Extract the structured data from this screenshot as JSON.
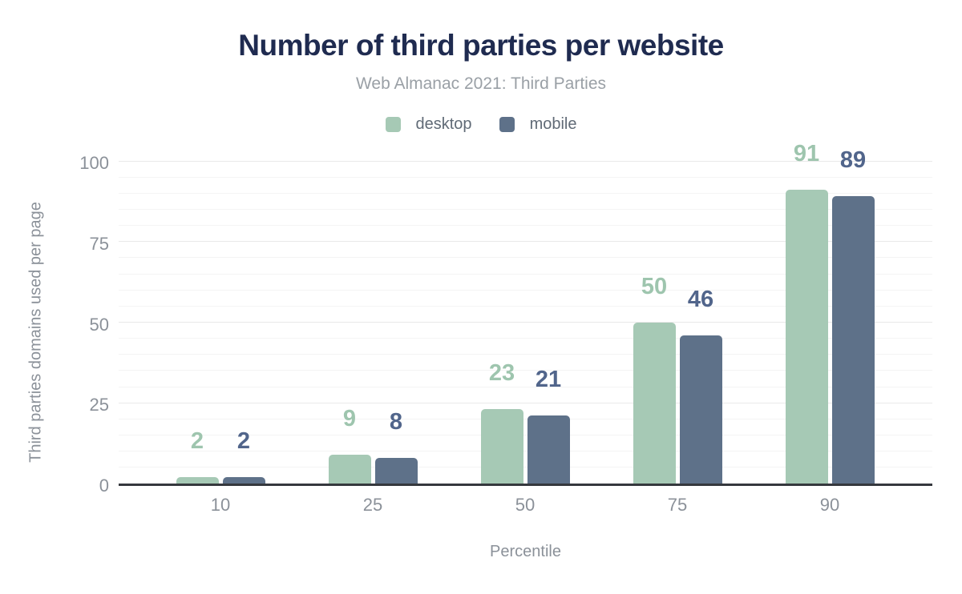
{
  "chart": {
    "title": "Number of third parties per website",
    "subtitle": "Web Almanac 2021: Third Parties",
    "x_axis_title": "Percentile",
    "y_axis_title": "Third parties domains used per page"
  },
  "legend": {
    "items": [
      {
        "label": "desktop",
        "color": "#a6c9b5"
      },
      {
        "label": "mobile",
        "color": "#5e7189"
      }
    ]
  },
  "colors": {
    "title": "#1f2b50",
    "subtitle": "#9aa0a6",
    "axis_text": "#8b9199",
    "axis_line": "#35383d",
    "desktop_bar": "#a6c9b5",
    "mobile_bar": "#5e7189",
    "desktop_value_label": "#9ec5ae",
    "mobile_value_label": "#51658b",
    "major_gridline": "#e9e9e9",
    "minor_gridline": "#f4f4f4"
  },
  "chart_data": {
    "type": "bar",
    "title": "Number of third parties per website",
    "subtitle": "Web Almanac 2021: Third Parties",
    "xlabel": "Percentile",
    "ylabel": "Third parties domains used per page",
    "categories": [
      "10",
      "25",
      "50",
      "75",
      "90"
    ],
    "series": [
      {
        "name": "desktop",
        "color": "#a6c9b5",
        "label_color": "#9ec5ae",
        "values": [
          2,
          9,
          23,
          50,
          91
        ]
      },
      {
        "name": "mobile",
        "color": "#5e7189",
        "label_color": "#51658b",
        "values": [
          2,
          8,
          21,
          46,
          89
        ]
      }
    ],
    "ylim": [
      0,
      100
    ],
    "y_ticks": [
      0,
      25,
      50,
      75,
      100
    ],
    "grid": "horizontal, minor every 5, major every 25",
    "legend_position": "top",
    "data_labels": "above bars, colored per series"
  }
}
